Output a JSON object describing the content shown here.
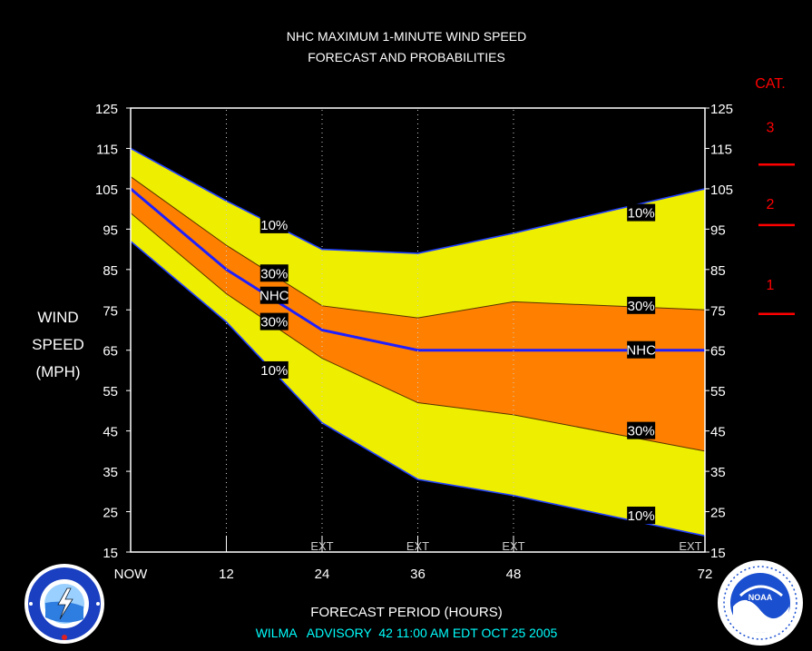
{
  "colors": {
    "background": "#000000",
    "band_10": "#EEEE00",
    "band_30": "#FF8000",
    "nhc_line": "#1E1EFF",
    "category_text": "#FF0000",
    "footer_text": "#00FFFF",
    "axis_text": "#FFFFFF"
  },
  "chart_data": {
    "type": "area",
    "title": "NHC MAXIMUM 1-MINUTE WIND SPEED",
    "subtitle": "FORECAST AND PROBABILITIES",
    "xlabel": "FORECAST PERIOD (HOURS)",
    "ylabel_lines": [
      "WIND",
      "SPEED",
      "(MPH)"
    ],
    "ylim": [
      15,
      125
    ],
    "xlim": [
      0,
      72
    ],
    "y_ticks": [
      15,
      25,
      35,
      45,
      55,
      65,
      75,
      85,
      95,
      105,
      115,
      125
    ],
    "x_ticks": [
      {
        "x": 0,
        "label": "NOW"
      },
      {
        "x": 12,
        "label": "12"
      },
      {
        "x": 24,
        "label": "24"
      },
      {
        "x": 36,
        "label": "36"
      },
      {
        "x": 48,
        "label": "48"
      },
      {
        "x": 72,
        "label": "72"
      }
    ],
    "ext_label": "EXT",
    "ext_at": [
      24,
      36,
      48,
      72
    ],
    "gridlines_at": [
      12,
      24,
      36,
      48
    ],
    "x": [
      0,
      12,
      24,
      36,
      48,
      72
    ],
    "series": [
      {
        "name": "10%",
        "values": [
          115,
          102,
          90,
          89,
          94,
          105
        ]
      },
      {
        "name": "30%",
        "values": [
          108,
          91,
          76,
          73,
          77,
          75
        ]
      },
      {
        "name": "NHC",
        "values": [
          105,
          85,
          70,
          65,
          65,
          65
        ]
      },
      {
        "name": "30%",
        "values": [
          99,
          79,
          63,
          52,
          49,
          40
        ]
      },
      {
        "name": "10%",
        "values": [
          92,
          72,
          47,
          33,
          29,
          19
        ]
      }
    ],
    "annotations": [
      {
        "text": "10%",
        "x": 18,
        "y": 96
      },
      {
        "text": "30%",
        "x": 18,
        "y": 84
      },
      {
        "text": "NHC",
        "x": 18,
        "y": 78.5
      },
      {
        "text": "30%",
        "x": 18,
        "y": 72
      },
      {
        "text": "10%",
        "x": 18,
        "y": 60
      },
      {
        "text": "10%",
        "x": 64,
        "y": 99
      },
      {
        "text": "30%",
        "x": 64,
        "y": 76
      },
      {
        "text": "NHC",
        "x": 64,
        "y": 65
      },
      {
        "text": "30%",
        "x": 64,
        "y": 45
      },
      {
        "text": "10%",
        "x": 64,
        "y": 24
      }
    ],
    "category_title": "CAT.",
    "categories": [
      {
        "label": "3",
        "y": 124
      },
      {
        "label": "2",
        "y": 105
      },
      {
        "label": "1",
        "y": 85
      }
    ],
    "category_thresholds": [
      111,
      96,
      74
    ]
  },
  "footer": {
    "storm": "WILMA",
    "advisory_label": "ADVISORY",
    "advisory_number": "42",
    "time": "11:00 AM EDT OCT 25 2005"
  }
}
